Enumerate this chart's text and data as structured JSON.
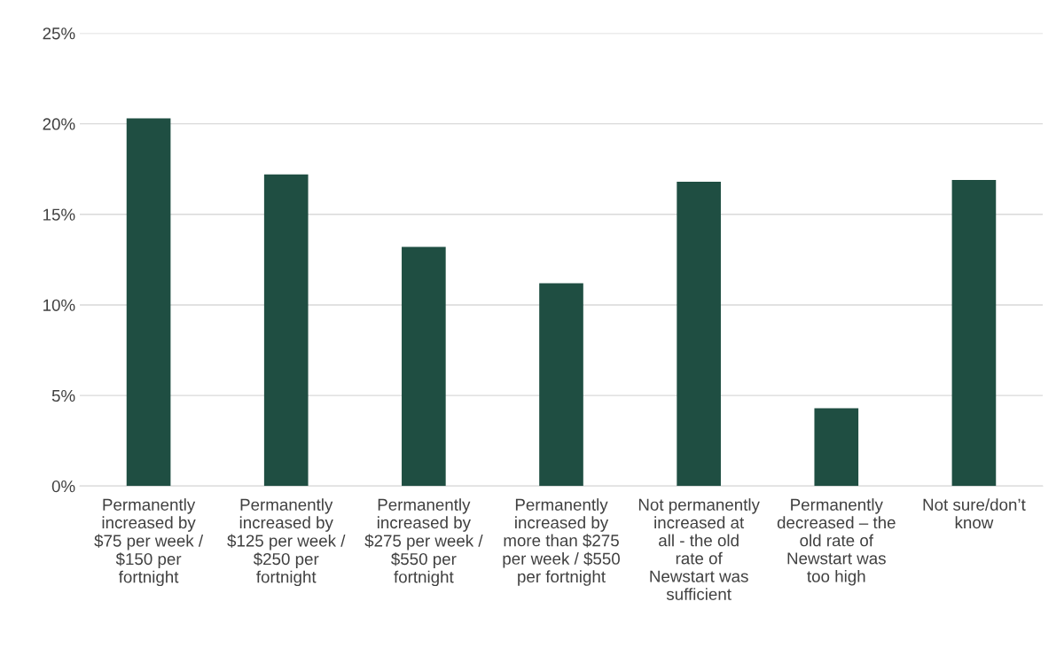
{
  "chart_data": {
    "type": "bar",
    "categories": [
      "Permanently increased by $75 per week / $150 per fortnight",
      "Permanently increased by $125 per week / $250 per fortnight",
      "Permanently increased by $275 per week / $550 per fortnight",
      "Permanently increased by more than $275 per week / $550 per fortnight",
      "Not permanently increased at all - the old rate of Newstart was sufficient",
      "Permanently decreased – the old rate of Newstart was too high",
      "Not sure/don’t know"
    ],
    "values": [
      20.3,
      17.2,
      13.2,
      11.2,
      16.8,
      4.3,
      16.9
    ],
    "color": "#1f4e42",
    "ylim": [
      0,
      25
    ],
    "yticks": [
      {
        "value": 0,
        "label": "0%"
      },
      {
        "value": 5,
        "label": "5%"
      },
      {
        "value": 10,
        "label": "10%"
      },
      {
        "value": 15,
        "label": "15%"
      },
      {
        "value": 20,
        "label": "20%"
      },
      {
        "value": 25,
        "label": "25%"
      }
    ],
    "grid": "y",
    "legend": false
  }
}
